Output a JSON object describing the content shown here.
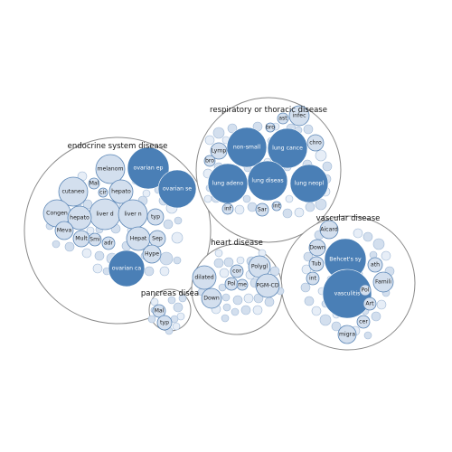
{
  "colors": {
    "dark": "#4a7fb6",
    "medium": "#b7cbe3",
    "light": "#d3dfee",
    "pale": "#e7eef7",
    "text_dark": "#ffffff",
    "text_light": "#1d1d1d"
  },
  "groups": [
    {
      "id": "endocrine",
      "label": "endocrine system disease"
    },
    {
      "id": "respiratory",
      "label": "respiratory or thoracic disease"
    },
    {
      "id": "vascular",
      "label": "vascular disease"
    },
    {
      "id": "heart",
      "label": "heart disease"
    },
    {
      "id": "pancreas",
      "label": "pancreas disea"
    }
  ],
  "bubbles": {
    "endocrine": [
      "ovarian ep",
      "ovarian se",
      "melanom",
      "cutaneo",
      "hepato",
      "Congen",
      "liver d",
      "liver n",
      "hepato",
      "typ",
      "Mal",
      "cir",
      "Hepat",
      "Meva",
      "Mult",
      "Sep",
      "Smi",
      "adr",
      "Hype",
      "ovarian ca"
    ],
    "respiratory": [
      "non-small",
      "lung cance",
      "lung adeno",
      "lung diseas",
      "lung neopl",
      "infec",
      "ast",
      "bro",
      "chro",
      "Lymp",
      "bro",
      "inf",
      "Sar",
      "int"
    ],
    "vascular": [
      "Behcet's sy",
      "vasculitis",
      "Aicard",
      "Down",
      "Tub",
      "int",
      "ath",
      "Famili",
      "Pol",
      "Art",
      "cer",
      "migra"
    ],
    "heart": [
      "dilated",
      "Down",
      "Polygl",
      "cor",
      "Pol",
      "me",
      "PGM-CD"
    ],
    "pancreas": [
      "Mal",
      "typ"
    ]
  }
}
